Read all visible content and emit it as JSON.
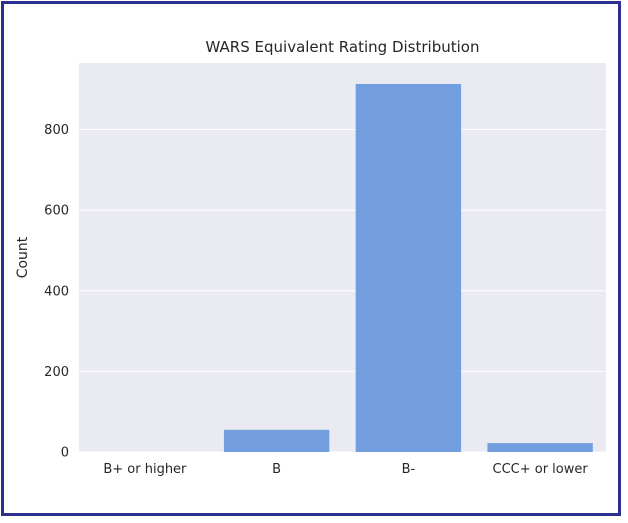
{
  "chart_data": {
    "type": "bar",
    "title": "WARS Equivalent Rating Distribution",
    "xlabel": "",
    "ylabel": "Count",
    "categories": [
      "B+ or higher",
      "B",
      "B-",
      "CCC+ or lower"
    ],
    "values": [
      0,
      55,
      913,
      22
    ],
    "ylim": [
      0,
      965
    ],
    "yticks": [
      0,
      200,
      400,
      600,
      800
    ],
    "grid": true,
    "colors": {
      "bar": "#729ddf",
      "plot_background": "#eaeaf2",
      "grid": "#ffffff",
      "frame_border": "#2b2f8f"
    }
  }
}
